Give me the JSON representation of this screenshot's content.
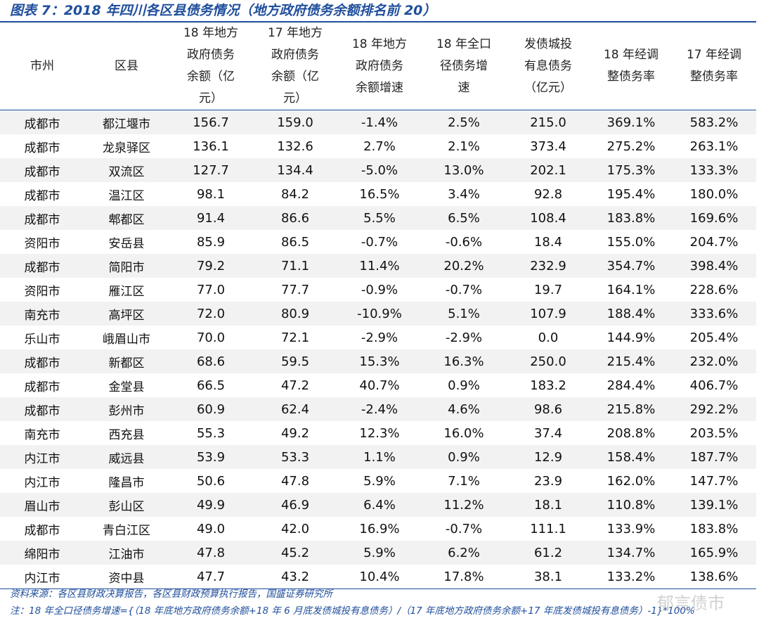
{
  "title": "图表 7：2018 年四川各区县债务情况（地方政府债务余额排名前 20）",
  "table": {
    "header": [
      "市州",
      "区县",
      "18 年地方政府债务余额（亿元）",
      "17 年地方政府债务余额（亿元）",
      "18 年地方政府债务余额增速",
      "18 年全口径债务增速",
      "发债城投有息债务（亿元）",
      "18 年经调整债务率",
      "17 年经调整债务率"
    ],
    "rows": [
      [
        "成都市",
        "都江堰市",
        "156.7",
        "159.0",
        "-1.4%",
        "2.5%",
        "215.0",
        "369.1%",
        "583.2%"
      ],
      [
        "成都市",
        "龙泉驿区",
        "136.1",
        "132.6",
        "2.7%",
        "2.1%",
        "373.4",
        "275.2%",
        "263.1%"
      ],
      [
        "成都市",
        "双流区",
        "127.7",
        "134.4",
        "-5.0%",
        "13.0%",
        "202.1",
        "175.3%",
        "133.3%"
      ],
      [
        "成都市",
        "温江区",
        "98.1",
        "84.2",
        "16.5%",
        "3.4%",
        "92.8",
        "195.4%",
        "180.0%"
      ],
      [
        "成都市",
        "郫都区",
        "91.4",
        "86.6",
        "5.5%",
        "6.5%",
        "108.4",
        "183.8%",
        "169.6%"
      ],
      [
        "资阳市",
        "安岳县",
        "85.9",
        "86.5",
        "-0.7%",
        "-0.6%",
        "18.4",
        "155.0%",
        "204.7%"
      ],
      [
        "成都市",
        "简阳市",
        "79.2",
        "71.1",
        "11.4%",
        "20.2%",
        "232.9",
        "354.7%",
        "398.4%"
      ],
      [
        "资阳市",
        "雁江区",
        "77.0",
        "77.7",
        "-0.9%",
        "-0.7%",
        "19.7",
        "164.1%",
        "228.6%"
      ],
      [
        "南充市",
        "高坪区",
        "72.0",
        "80.9",
        "-10.9%",
        "5.1%",
        "107.9",
        "188.4%",
        "333.6%"
      ],
      [
        "乐山市",
        "峨眉山市",
        "70.0",
        "72.1",
        "-2.9%",
        "-2.9%",
        "0.0",
        "144.9%",
        "205.4%"
      ],
      [
        "成都市",
        "新都区",
        "68.6",
        "59.5",
        "15.3%",
        "16.3%",
        "250.0",
        "215.4%",
        "232.0%"
      ],
      [
        "成都市",
        "金堂县",
        "66.5",
        "47.2",
        "40.7%",
        "0.9%",
        "183.2",
        "284.4%",
        "406.7%"
      ],
      [
        "成都市",
        "彭州市",
        "60.9",
        "62.4",
        "-2.4%",
        "4.6%",
        "98.6",
        "215.8%",
        "292.2%"
      ],
      [
        "南充市",
        "西充县",
        "55.3",
        "49.2",
        "12.3%",
        "16.0%",
        "37.4",
        "208.8%",
        "203.5%"
      ],
      [
        "内江市",
        "威远县",
        "53.9",
        "53.3",
        "1.1%",
        "0.9%",
        "12.9",
        "158.4%",
        "187.7%"
      ],
      [
        "内江市",
        "隆昌市",
        "50.6",
        "47.8",
        "5.9%",
        "7.1%",
        "23.9",
        "162.0%",
        "147.7%"
      ],
      [
        "眉山市",
        "彭山区",
        "49.9",
        "46.9",
        "6.4%",
        "11.2%",
        "18.1",
        "110.8%",
        "139.1%"
      ],
      [
        "成都市",
        "青白江区",
        "49.0",
        "42.0",
        "16.9%",
        "-0.7%",
        "111.1",
        "133.9%",
        "183.8%"
      ],
      [
        "绵阳市",
        "江油市",
        "47.8",
        "45.2",
        "5.9%",
        "6.2%",
        "61.2",
        "134.7%",
        "165.9%"
      ],
      [
        "内江市",
        "资中县",
        "47.7",
        "43.2",
        "10.4%",
        "17.8%",
        "38.1",
        "133.2%",
        "138.6%"
      ]
    ]
  },
  "source": "资料来源：各区县财政决算报告，各区县财政预算执行报告，国盛证券研究所",
  "note": "注：18 年全口径债务增速={（18 年底地方政府债务余额+18 年 6 月底发债城投有息债务）/（17 年底地方政府债务余额+17 年底发债城投有息债务）-1}*100%",
  "watermark": "郁言债市"
}
